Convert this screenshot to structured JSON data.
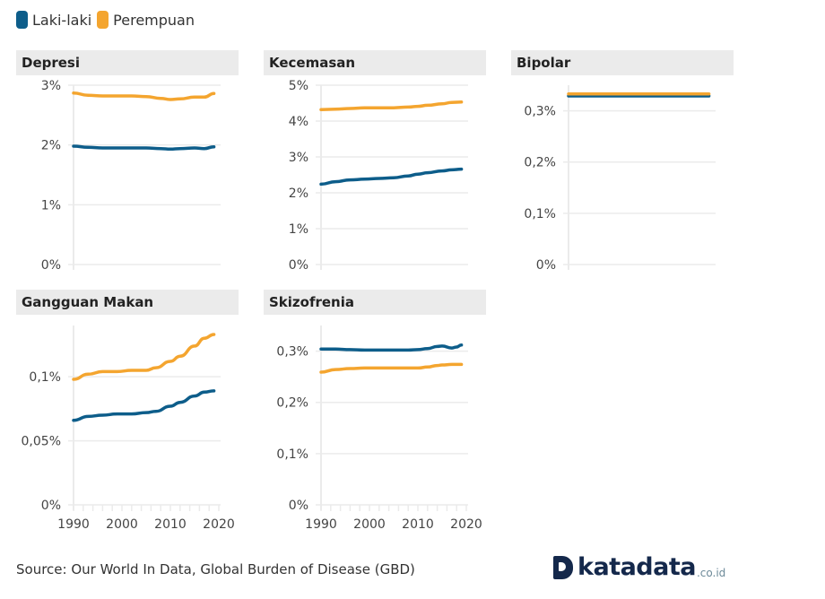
{
  "legend": [
    {
      "label": "Laki-laki",
      "color": "#0d5d8a"
    },
    {
      "label": "Perempuan",
      "color": "#f4a52f"
    }
  ],
  "source": "Source: Our World In Data, Global Burden of Disease (GBD)",
  "logo": {
    "name": "katadata",
    "suffix": ".co.id"
  },
  "chart_data": [
    {
      "type": "line",
      "title": "Depresi",
      "x_ticks": [
        "1990",
        "2000",
        "2010",
        "2020"
      ],
      "xlim": [
        1990,
        2020
      ],
      "y_ticks": [
        "0%",
        "1%",
        "2%",
        "3%"
      ],
      "y_tick_values": [
        0,
        1,
        2,
        3
      ],
      "ylim": [
        0,
        3
      ],
      "show_x_axis_labels": false,
      "x": [
        1990,
        1993,
        1996,
        1999,
        2002,
        2005,
        2008,
        2010,
        2012,
        2015,
        2017,
        2019
      ],
      "series": [
        {
          "name": "Laki-laki",
          "values": [
            1.98,
            1.96,
            1.95,
            1.95,
            1.95,
            1.95,
            1.94,
            1.93,
            1.94,
            1.95,
            1.94,
            1.97
          ]
        },
        {
          "name": "Perempuan",
          "values": [
            2.87,
            2.83,
            2.82,
            2.82,
            2.82,
            2.81,
            2.78,
            2.76,
            2.77,
            2.8,
            2.8,
            2.86
          ]
        }
      ],
      "grid": true
    },
    {
      "type": "line",
      "title": "Kecemasan",
      "x_ticks": [
        "1990",
        "2000",
        "2010",
        "2020"
      ],
      "xlim": [
        1990,
        2020
      ],
      "y_ticks": [
        "0%",
        "1%",
        "2%",
        "3%",
        "4%",
        "5%"
      ],
      "y_tick_values": [
        0,
        1,
        2,
        3,
        4,
        5
      ],
      "ylim": [
        0,
        5
      ],
      "show_x_axis_labels": false,
      "x": [
        1990,
        1993,
        1996,
        1999,
        2002,
        2005,
        2008,
        2010,
        2012,
        2015,
        2017,
        2019
      ],
      "series": [
        {
          "name": "Laki-laki",
          "values": [
            2.24,
            2.31,
            2.36,
            2.38,
            2.4,
            2.42,
            2.47,
            2.52,
            2.56,
            2.61,
            2.64,
            2.66
          ]
        },
        {
          "name": "Perempuan",
          "values": [
            4.32,
            4.33,
            4.35,
            4.37,
            4.37,
            4.37,
            4.39,
            4.41,
            4.44,
            4.48,
            4.52,
            4.53
          ]
        }
      ],
      "grid": true
    },
    {
      "type": "line",
      "title": "Bipolar",
      "x_ticks": [],
      "xlim": [
        1990,
        2020
      ],
      "y_ticks": [
        "0%",
        "0,1%",
        "0,2%",
        "0,3%"
      ],
      "y_tick_values": [
        0,
        0.1,
        0.2,
        0.3
      ],
      "ylim": [
        0,
        0.35
      ],
      "show_x_axis_labels": false,
      "x": [
        1990,
        2019
      ],
      "series": [
        {
          "name": "Laki-laki",
          "values": [
            0.329,
            0.329
          ]
        },
        {
          "name": "Perempuan",
          "values": [
            0.333,
            0.333
          ]
        }
      ],
      "grid": true
    },
    {
      "type": "line",
      "title": "Gangguan Makan",
      "x_ticks": [
        "1990",
        "2000",
        "2010",
        "2020"
      ],
      "xlim": [
        1990,
        2020
      ],
      "y_ticks": [
        "0%",
        "0,05%",
        "0,1%"
      ],
      "y_tick_values": [
        0,
        0.05,
        0.1
      ],
      "ylim": [
        0,
        0.14
      ],
      "show_x_axis_labels": true,
      "x": [
        1990,
        1993,
        1996,
        1999,
        2002,
        2005,
        2007,
        2010,
        2012,
        2015,
        2017,
        2019
      ],
      "series": [
        {
          "name": "Laki-laki",
          "values": [
            0.066,
            0.069,
            0.07,
            0.071,
            0.071,
            0.072,
            0.073,
            0.077,
            0.08,
            0.085,
            0.088,
            0.089
          ]
        },
        {
          "name": "Perempuan",
          "values": [
            0.098,
            0.102,
            0.104,
            0.104,
            0.105,
            0.105,
            0.107,
            0.112,
            0.116,
            0.124,
            0.13,
            0.133
          ]
        }
      ],
      "grid": true
    },
    {
      "type": "line",
      "title": "Skizofrenia",
      "x_ticks": [
        "1990",
        "2000",
        "2010",
        "2020"
      ],
      "xlim": [
        1990,
        2020
      ],
      "y_ticks": [
        "0%",
        "0,1%",
        "0,2%",
        "0,3%"
      ],
      "y_tick_values": [
        0,
        0.1,
        0.2,
        0.3
      ],
      "ylim": [
        0,
        0.35
      ],
      "show_x_axis_labels": true,
      "x": [
        1990,
        1993,
        1996,
        1999,
        2002,
        2005,
        2008,
        2010,
        2012,
        2014,
        2015,
        2017,
        2018,
        2019
      ],
      "series": [
        {
          "name": "Laki-laki",
          "values": [
            0.304,
            0.304,
            0.303,
            0.302,
            0.302,
            0.302,
            0.302,
            0.303,
            0.305,
            0.309,
            0.31,
            0.306,
            0.308,
            0.312
          ]
        },
        {
          "name": "Perempuan",
          "values": [
            0.259,
            0.264,
            0.266,
            0.267,
            0.267,
            0.267,
            0.267,
            0.267,
            0.269,
            0.272,
            0.273,
            0.274,
            0.274,
            0.274
          ]
        }
      ],
      "grid": true
    }
  ]
}
